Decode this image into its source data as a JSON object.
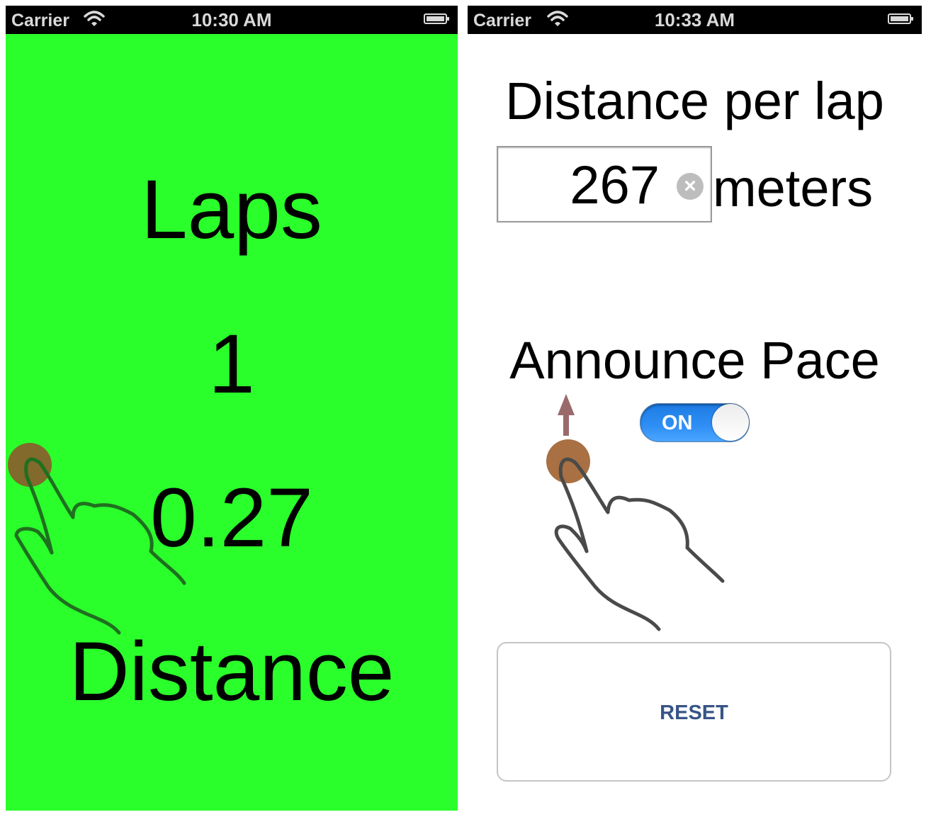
{
  "left_screen": {
    "status": {
      "carrier": "Carrier",
      "time": "10:30 AM"
    },
    "laps_title": "Laps",
    "laps_value": "1",
    "distance_value": "0.27",
    "distance_title": "Distance",
    "colors": {
      "background": "#2bff2b",
      "gesture_hand": "#1f6f1f",
      "gesture_dot": "#8b5a2b"
    },
    "gesture_icon": "tap-hand-icon"
  },
  "right_screen": {
    "status": {
      "carrier": "Carrier",
      "time": "10:33 AM"
    },
    "distance_per_lap_label": "Distance per lap",
    "distance_value": "267",
    "clear_icon": "×",
    "unit_label": "meters",
    "announce_pace_label": "Announce Pace",
    "toggle": {
      "state_label": "ON",
      "on": true
    },
    "reset_label": "RESET",
    "colors": {
      "toggle_on": "#2f8ff5",
      "reset_text": "#385487",
      "gesture_hand": "#4a4a4a",
      "gesture_dot": "#a0612f",
      "swipe_arrow": "#9a6a6a"
    },
    "gesture_icon": "swipe-up-hand-icon"
  }
}
